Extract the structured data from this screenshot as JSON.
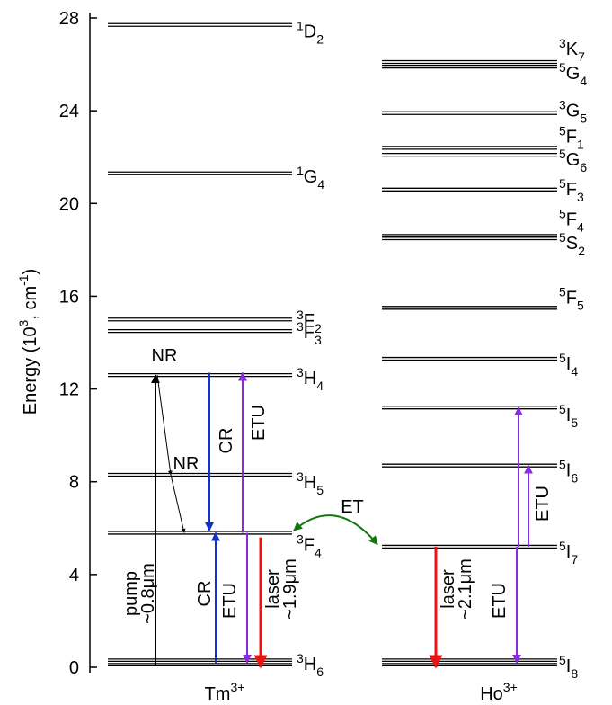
{
  "axis": {
    "label": {
      "main": "Energy (10",
      "exp1": "3",
      "mid": ", cm",
      "exp2": "-1",
      "end": ")"
    },
    "ylim": [
      0,
      28
    ],
    "yticks": [
      0,
      4,
      8,
      12,
      16,
      20,
      24,
      28
    ]
  },
  "ions": [
    {
      "name": "Tm",
      "charge": "3+",
      "levels": [
        {
          "energy": 27.7,
          "term": {
            "pre": "1",
            "base": "D",
            "sub": "2"
          }
        },
        {
          "energy": 21.3,
          "term": {
            "pre": "1",
            "base": "G",
            "sub": "4"
          }
        },
        {
          "energy": 15.0,
          "term": {
            "pre": "3",
            "base": "F",
            "sub": "2"
          }
        },
        {
          "energy": 14.5,
          "term": {
            "pre": "3",
            "base": "F",
            "sub": "3"
          }
        },
        {
          "energy": 12.6,
          "term": {
            "pre": "3",
            "base": "H",
            "sub": "4"
          }
        },
        {
          "energy": 8.3,
          "term": {
            "pre": "3",
            "base": "H",
            "sub": "5"
          }
        },
        {
          "energy": 5.8,
          "term": {
            "pre": "3",
            "base": "F",
            "sub": "4"
          }
        },
        {
          "energy": 0.2,
          "term": {
            "pre": "3",
            "base": "H",
            "sub": "6"
          }
        }
      ]
    },
    {
      "name": "Ho",
      "charge": "3+",
      "levels": [
        {
          "energy": 26.1,
          "term": {
            "pre": "3",
            "base": "K",
            "sub": "7"
          }
        },
        {
          "energy": 25.9,
          "term": {
            "pre": "5",
            "base": "G",
            "sub": "4"
          }
        },
        {
          "energy": 23.9,
          "term": {
            "pre": "3",
            "base": "G",
            "sub": "5"
          }
        },
        {
          "energy": 22.4,
          "term": {
            "pre": "5",
            "base": "F",
            "sub": "1"
          }
        },
        {
          "energy": 22.1,
          "term": {
            "pre": "5",
            "base": "G",
            "sub": "6"
          }
        },
        {
          "energy": 20.6,
          "term": {
            "pre": "5",
            "base": "F",
            "sub": "3"
          }
        },
        {
          "energy": 18.6,
          "term": {
            "pre": "5",
            "base": "F",
            "sub": "4"
          }
        },
        {
          "energy": 18.5,
          "term": {
            "pre": "5",
            "base": "S",
            "sub": "2"
          }
        },
        {
          "energy": 15.5,
          "term": {
            "pre": "5",
            "base": "F",
            "sub": "5"
          }
        },
        {
          "energy": 13.3,
          "term": {
            "pre": "5",
            "base": "I",
            "sub": "4"
          }
        },
        {
          "energy": 11.2,
          "term": {
            "pre": "5",
            "base": "I",
            "sub": "5"
          }
        },
        {
          "energy": 8.7,
          "term": {
            "pre": "5",
            "base": "I",
            "sub": "6"
          }
        },
        {
          "energy": 5.2,
          "term": {
            "pre": "5",
            "base": "I",
            "sub": "7"
          }
        },
        {
          "energy": 0.2,
          "term": {
            "pre": "5",
            "base": "I",
            "sub": "8"
          }
        }
      ]
    }
  ],
  "transitions": [
    {
      "from": 0.1,
      "to": 12.6,
      "color": "#000000",
      "label": [
        "pump",
        "~0.8μm"
      ]
    },
    {
      "from": 12.6,
      "to": 8.3,
      "color": "#000000",
      "label": [
        "NR"
      ]
    },
    {
      "from": 8.3,
      "to": 5.8,
      "color": "#000000",
      "label": [
        "NR"
      ]
    },
    {
      "from": 12.7,
      "to": 5.9,
      "color": "#1030d0",
      "label": [
        "CR"
      ]
    },
    {
      "from": 5.8,
      "to": 12.7,
      "color": "#8a2be2",
      "label": [
        "ETU"
      ]
    },
    {
      "from": 0.2,
      "to": 5.8,
      "color": "#1030d0",
      "label": [
        "CR"
      ]
    },
    {
      "from": 5.8,
      "to": 0.2,
      "color": "#8a2be2",
      "label": [
        "ETU"
      ]
    },
    {
      "from": 5.6,
      "to": 0,
      "color": "#ee1111",
      "label": [
        "laser",
        "~1.9μm"
      ]
    },
    {
      "from": 5.9,
      "to": 5.3,
      "color": "#117711",
      "label": [
        "ET"
      ]
    },
    {
      "from": 5.2,
      "to": 0,
      "color": "#ee1111",
      "label": [
        "laser",
        "~2.1μm"
      ]
    },
    {
      "from": 5.2,
      "to": 0.2,
      "color": "#8a2be2",
      "label": [
        "ETU"
      ]
    },
    {
      "from": 5.2,
      "to": 11.2,
      "color": "#8a2be2"
    },
    {
      "from": 5.2,
      "to": 8.7,
      "color": "#8a2be2",
      "label": [
        "ETU"
      ]
    }
  ]
}
